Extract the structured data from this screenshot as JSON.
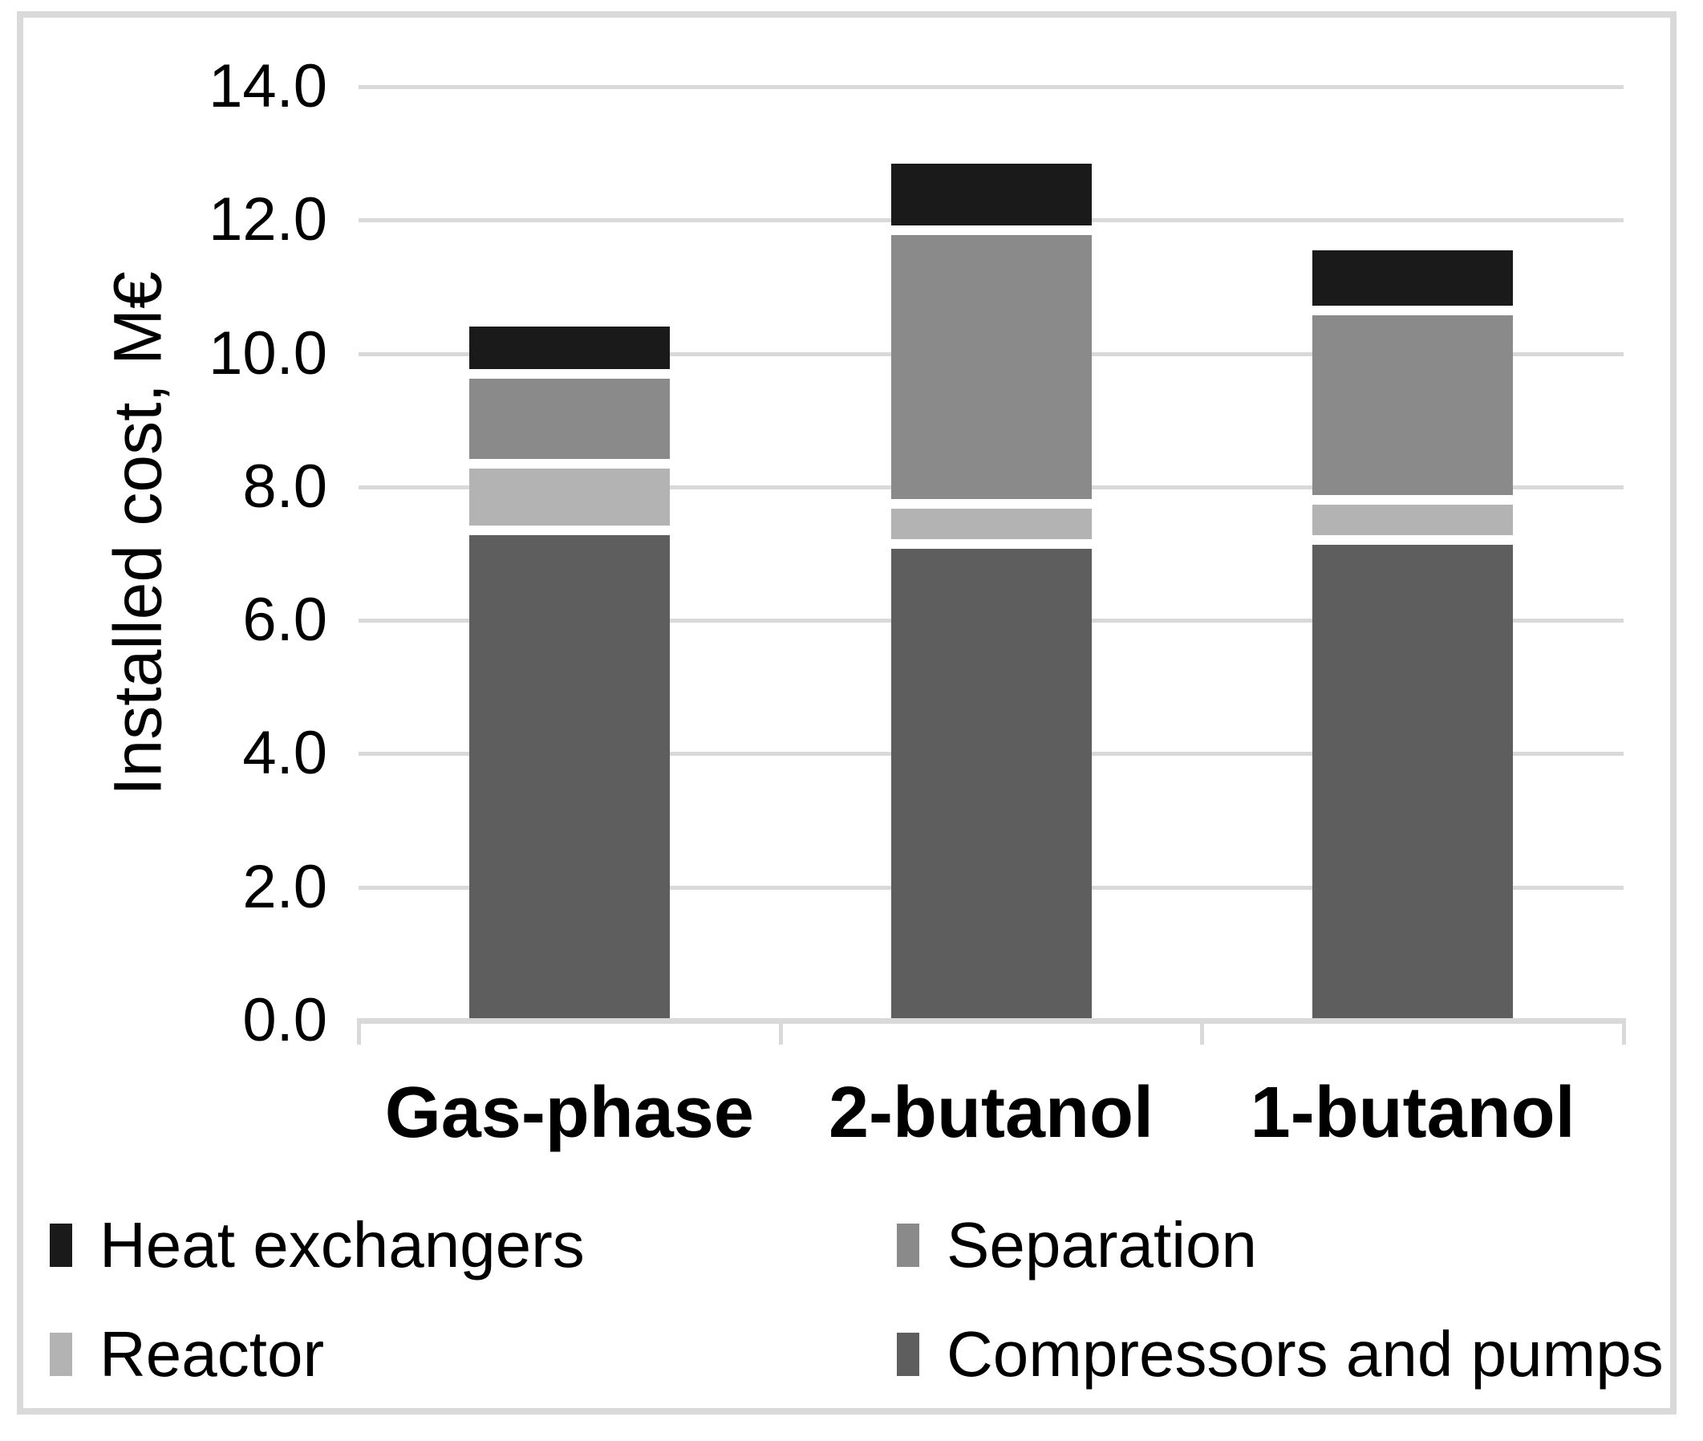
{
  "chart_data": {
    "type": "bar",
    "stacked": true,
    "title": "",
    "categories": [
      "Gas-phase",
      "2-butanol",
      "1-butanol"
    ],
    "series": [
      {
        "name": "Compressors and pumps",
        "color": "#5e5e5e",
        "values": [
          7.35,
          7.15,
          7.2
        ]
      },
      {
        "name": "Reactor",
        "color": "#b3b3b3",
        "values": [
          1.0,
          0.6,
          0.6
        ]
      },
      {
        "name": "Separation",
        "color": "#8a8a8a",
        "values": [
          1.35,
          4.1,
          2.85
        ]
      },
      {
        "name": "Heat exchangers",
        "color": "#1a1a1a",
        "values": [
          0.7,
          1.0,
          0.9
        ]
      }
    ],
    "totals": [
      10.4,
      12.85,
      11.55
    ],
    "xlabel": "",
    "ylabel": "Installed cost, M€",
    "ylim": [
      0,
      14
    ],
    "ytick_step": 2,
    "ytick_labels": [
      "0.0",
      "2.0",
      "4.0",
      "6.0",
      "8.0",
      "10.0",
      "12.0",
      "14.0"
    ],
    "grid": true,
    "gridline_color": "#d9d9d9",
    "frame_color": "#d9d9d9",
    "segment_border_color": "#ffffff",
    "legend": {
      "position": "bottom",
      "order": [
        "Heat exchangers",
        "Separation",
        "Reactor",
        "Compressors and pumps"
      ]
    }
  }
}
